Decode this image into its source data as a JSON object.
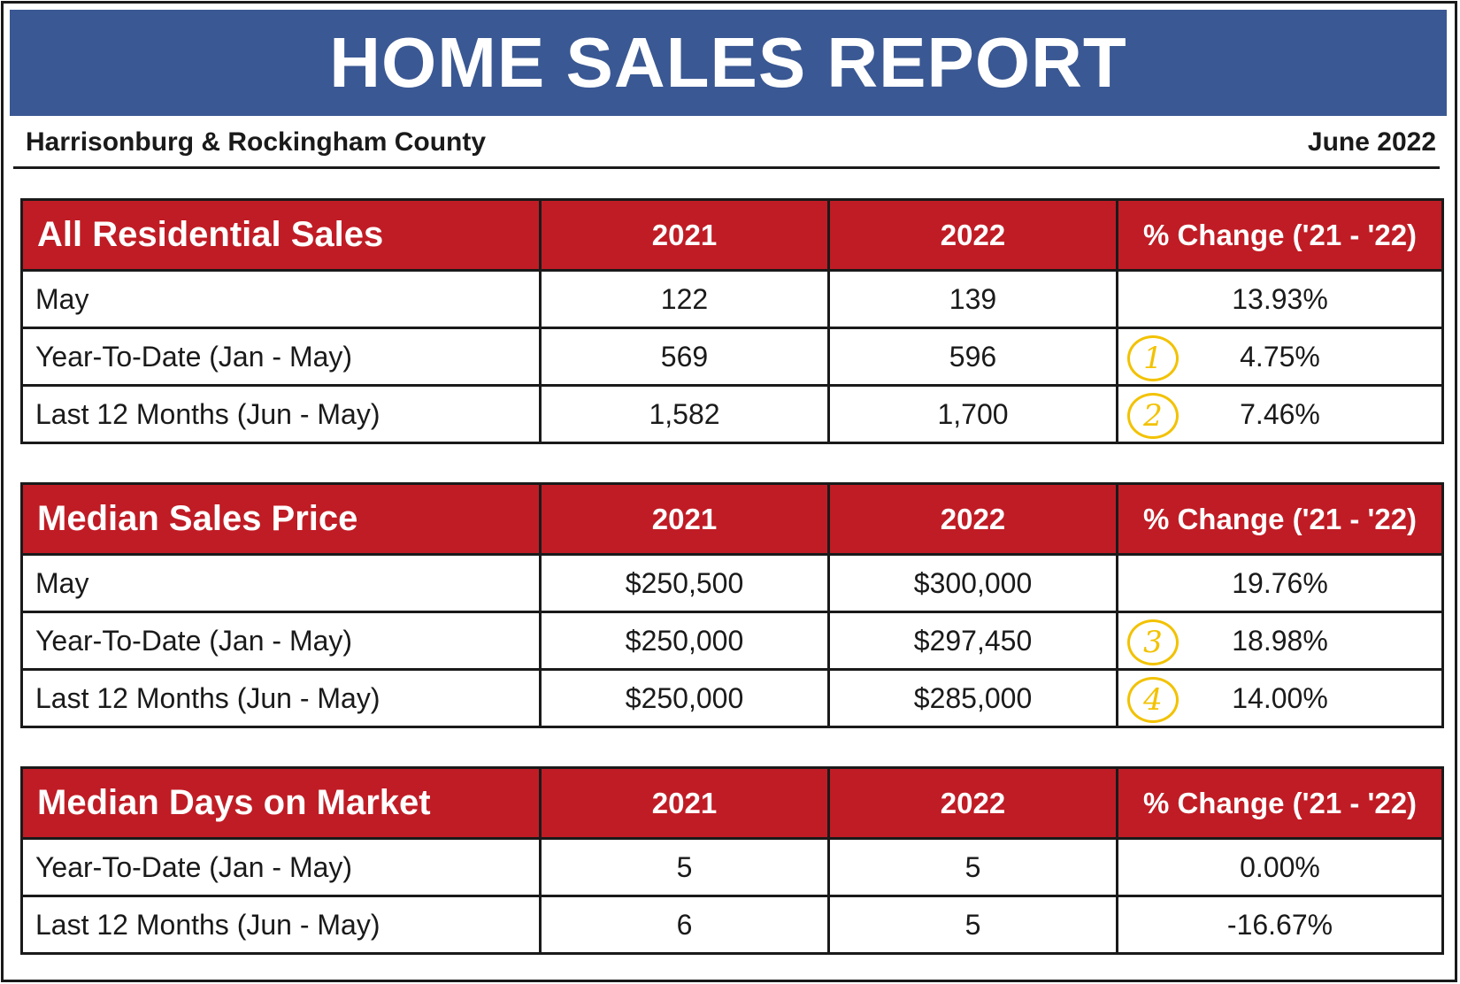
{
  "header": {
    "title": "HOME SALES REPORT",
    "region": "Harrisonburg & Rockingham County",
    "date": "June 2022"
  },
  "colors": {
    "banner": "#3a5893",
    "table_header": "#c01c25",
    "marker": "#f2c200"
  },
  "tables": [
    {
      "title": "All Residential Sales",
      "columns": [
        "2021",
        "2022",
        "% Change ('21 - '22)"
      ],
      "rows": [
        {
          "label": "May",
          "v2021": "122",
          "v2022": "139",
          "change": "13.93%",
          "marker": ""
        },
        {
          "label": "Year-To-Date (Jan - May)",
          "v2021": "569",
          "v2022": "596",
          "change": "4.75%",
          "marker": "1"
        },
        {
          "label": "Last 12 Months (Jun - May)",
          "v2021": "1,582",
          "v2022": "1,700",
          "change": "7.46%",
          "marker": "2"
        }
      ]
    },
    {
      "title": "Median Sales Price",
      "columns": [
        "2021",
        "2022",
        "% Change ('21 - '22)"
      ],
      "rows": [
        {
          "label": "May",
          "v2021": "$250,500",
          "v2022": "$300,000",
          "change": "19.76%",
          "marker": ""
        },
        {
          "label": "Year-To-Date (Jan - May)",
          "v2021": "$250,000",
          "v2022": "$297,450",
          "change": "18.98%",
          "marker": "3"
        },
        {
          "label": "Last 12 Months (Jun - May)",
          "v2021": "$250,000",
          "v2022": "$285,000",
          "change": "14.00%",
          "marker": "4"
        }
      ]
    },
    {
      "title": "Median Days on Market",
      "columns": [
        "2021",
        "2022",
        "% Change ('21 - '22)"
      ],
      "rows": [
        {
          "label": "Year-To-Date (Jan - May)",
          "v2021": "5",
          "v2022": "5",
          "change": "0.00%",
          "marker": ""
        },
        {
          "label": "Last 12 Months (Jun - May)",
          "v2021": "6",
          "v2022": "5",
          "change": "-16.67%",
          "marker": ""
        }
      ]
    }
  ]
}
